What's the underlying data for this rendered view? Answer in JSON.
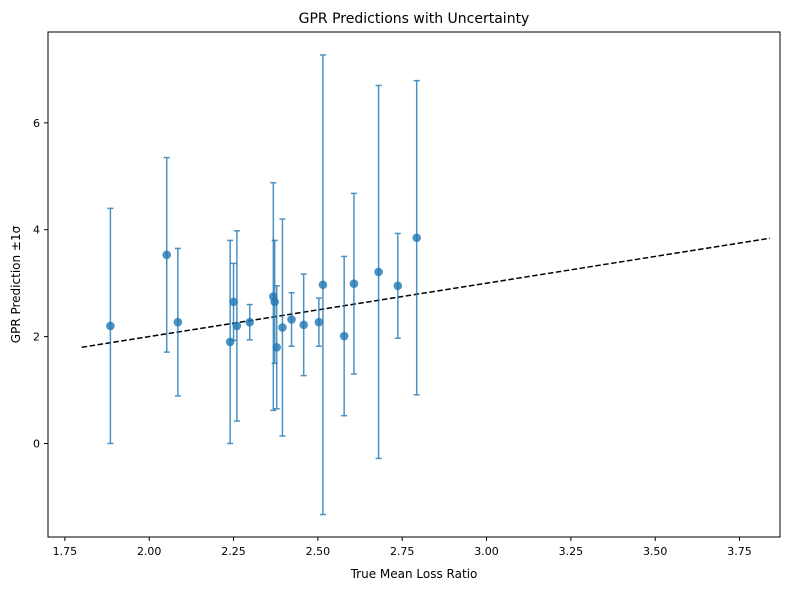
{
  "chart_data": {
    "type": "scatter",
    "title": "GPR Predictions with Uncertainty",
    "xlabel": "True Mean Loss Ratio",
    "ylabel": "GPR Prediction ±1σ",
    "xlim": [
      1.7,
      3.87
    ],
    "ylim": [
      -1.75,
      7.7
    ],
    "x_ticks": [
      1.75,
      2.0,
      2.25,
      2.5,
      2.75,
      3.0,
      3.25,
      3.5,
      3.75
    ],
    "x_tick_labels": [
      "1.75",
      "2.00",
      "2.25",
      "2.50",
      "2.75",
      "3.00",
      "3.25",
      "3.50",
      "3.75"
    ],
    "y_ticks": [
      0,
      2,
      4,
      6
    ],
    "y_tick_labels": [
      "0",
      "2",
      "4",
      "6"
    ],
    "grid": false,
    "colors": {
      "points": "#1f77b4",
      "reference_line": "#000000"
    },
    "reference_line": {
      "x": [
        1.8,
        3.84
      ],
      "y": [
        1.8,
        3.84
      ],
      "style": "dashed"
    },
    "points": [
      {
        "x": 1.885,
        "y": 2.2,
        "err": 2.2
      },
      {
        "x": 2.052,
        "y": 3.53,
        "err": 1.82
      },
      {
        "x": 2.085,
        "y": 2.27,
        "err": 1.38
      },
      {
        "x": 2.24,
        "y": 1.9,
        "err": 1.9
      },
      {
        "x": 2.25,
        "y": 2.65,
        "err": 0.72
      },
      {
        "x": 2.26,
        "y": 2.2,
        "err": 1.78
      },
      {
        "x": 2.298,
        "y": 2.27,
        "err": 0.33
      },
      {
        "x": 2.368,
        "y": 2.75,
        "err": 2.13
      },
      {
        "x": 2.372,
        "y": 2.65,
        "err": 1.15
      },
      {
        "x": 2.378,
        "y": 1.8,
        "err": 1.15
      },
      {
        "x": 2.395,
        "y": 2.17,
        "err": 2.03
      },
      {
        "x": 2.422,
        "y": 2.32,
        "err": 0.5
      },
      {
        "x": 2.458,
        "y": 2.22,
        "err": 0.95
      },
      {
        "x": 2.503,
        "y": 2.27,
        "err": 0.45
      },
      {
        "x": 2.515,
        "y": 2.97,
        "err": 4.3
      },
      {
        "x": 2.578,
        "y": 2.01,
        "err": 1.49
      },
      {
        "x": 2.607,
        "y": 2.99,
        "err": 1.69
      },
      {
        "x": 2.68,
        "y": 3.21,
        "err": 3.49
      },
      {
        "x": 2.737,
        "y": 2.95,
        "err": 0.98
      },
      {
        "x": 2.793,
        "y": 3.85,
        "err": 2.94
      }
    ]
  }
}
